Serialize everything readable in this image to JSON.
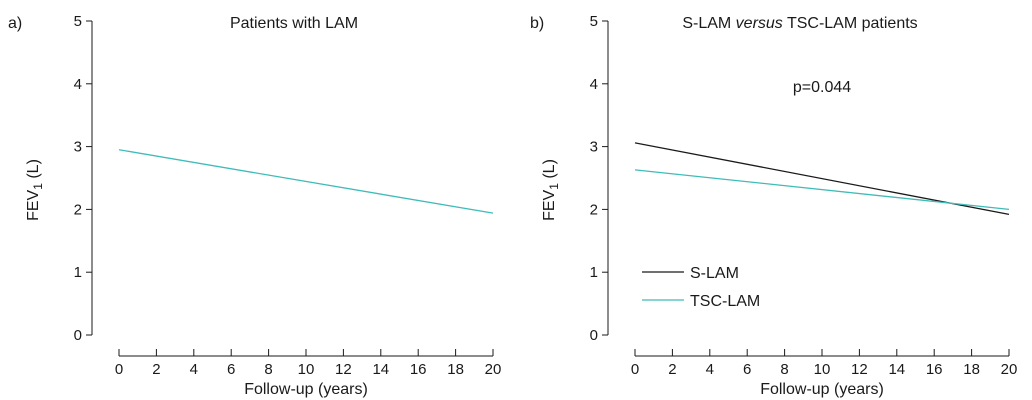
{
  "chart_data": [
    {
      "type": "line",
      "panel_label": "a)",
      "title": "Patients with LAM",
      "xlabel": "Follow-up (years)",
      "ylabel": {
        "pre": "FEV",
        "sub": "1",
        "post": " (L)"
      },
      "xlim": [
        0,
        20
      ],
      "ylim": [
        0,
        5
      ],
      "xticks": [
        0,
        2,
        4,
        6,
        8,
        10,
        12,
        14,
        16,
        18,
        20
      ],
      "yticks": [
        0,
        1,
        2,
        3,
        4,
        5
      ],
      "grid": false,
      "legend": null,
      "annotation": "",
      "series": [
        {
          "name": "",
          "color": "#3fbcb7",
          "x": [
            0,
            20
          ],
          "y": [
            2.95,
            1.94
          ]
        }
      ]
    },
    {
      "type": "line",
      "panel_label": "b)",
      "title": {
        "pre": "S-LAM ",
        "italic": "versus",
        "post": " TSC-LAM patients"
      },
      "xlabel": "Follow-up (years)",
      "ylabel": {
        "pre": "FEV",
        "sub": "1",
        "post": " (L)"
      },
      "xlim": [
        0,
        20
      ],
      "ylim": [
        0,
        5
      ],
      "xticks": [
        0,
        2,
        4,
        6,
        8,
        10,
        12,
        14,
        16,
        18,
        20
      ],
      "yticks": [
        0,
        1,
        2,
        3,
        4,
        5
      ],
      "grid": false,
      "legend": "bottom-left",
      "annotation": "p=0.044",
      "series": [
        {
          "name": "S-LAM",
          "color": "#1a1a1a",
          "x": [
            0,
            20
          ],
          "y": [
            3.06,
            1.92
          ]
        },
        {
          "name": "TSC-LAM",
          "color": "#3fbcb7",
          "x": [
            0,
            20
          ],
          "y": [
            2.63,
            2.0
          ]
        }
      ]
    }
  ]
}
